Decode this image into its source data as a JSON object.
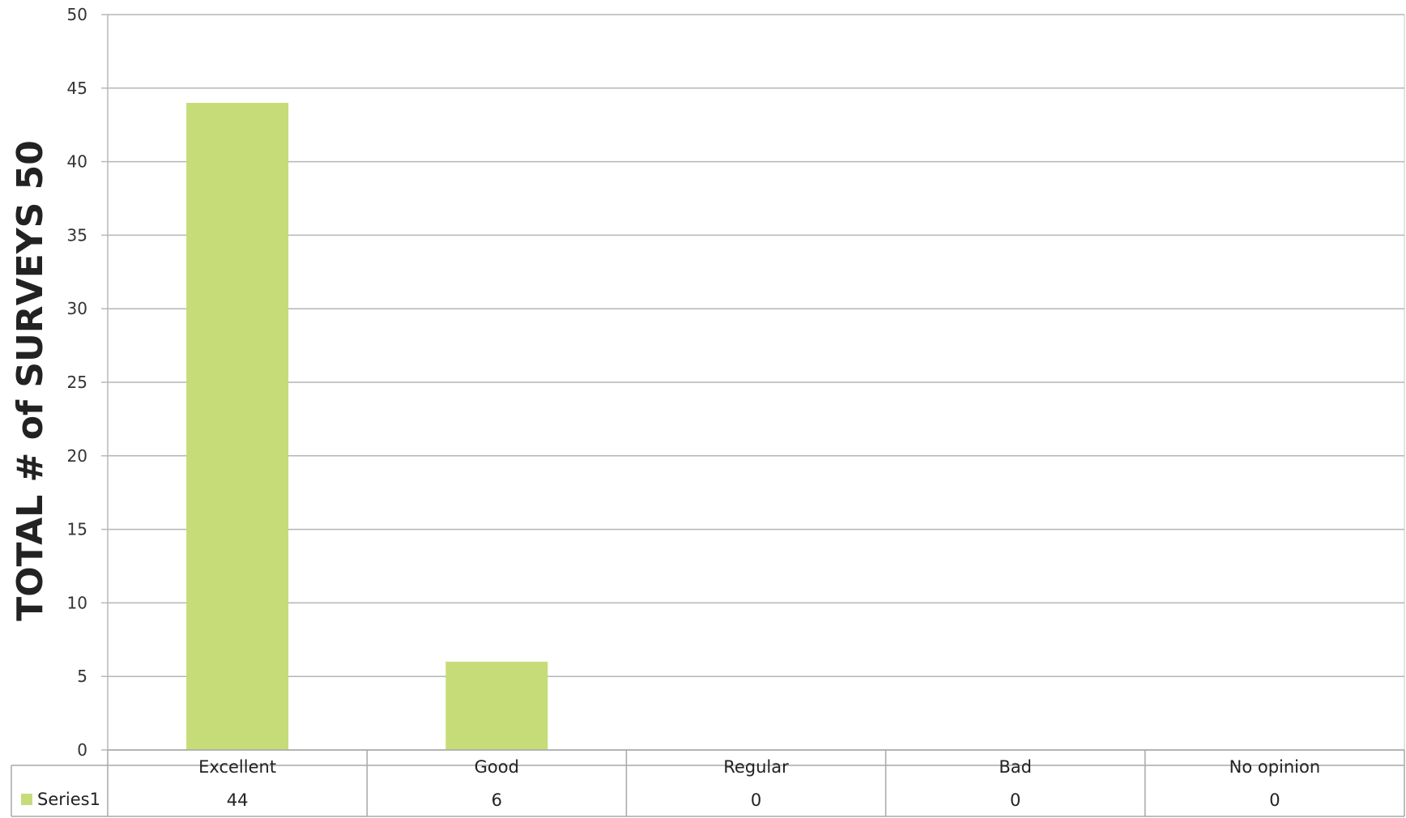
{
  "chart_data": {
    "type": "bar",
    "title": "",
    "xlabel": "",
    "ylabel": "TOTAL # of SURVEYS  50",
    "ylim": [
      0,
      50
    ],
    "yticks": [
      0,
      5,
      10,
      15,
      20,
      25,
      30,
      35,
      40,
      45,
      50
    ],
    "grid": true,
    "legend": "data-table",
    "categories": [
      "Excellent",
      "Good",
      "Regular",
      "Bad",
      "No opinion"
    ],
    "series": [
      {
        "name": "Series1",
        "values": [
          44,
          6,
          0,
          0,
          0
        ],
        "color": "#c6dc78"
      }
    ]
  }
}
